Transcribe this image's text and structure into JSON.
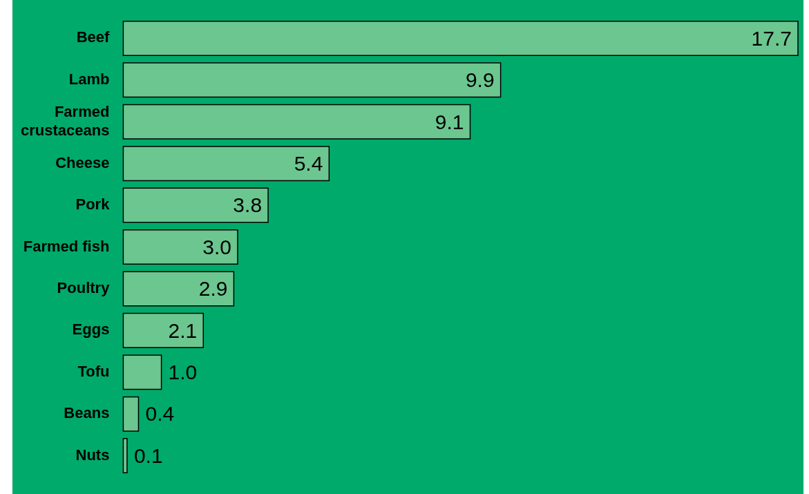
{
  "chart_data": {
    "type": "bar",
    "orientation": "horizontal",
    "categories": [
      "Beef",
      "Lamb",
      "Farmed crustaceans",
      "Cheese",
      "Pork",
      "Farmed fish",
      "Poultry",
      "Eggs",
      "Tofu",
      "Beans",
      "Nuts"
    ],
    "values": [
      17.7,
      9.9,
      9.1,
      5.4,
      3.8,
      3.0,
      2.9,
      2.1,
      1.0,
      0.4,
      0.1
    ],
    "value_labels": [
      "17.7",
      "9.9",
      "9.1",
      "5.4",
      "3.8",
      "3.0",
      "2.9",
      "2.1",
      "1.0",
      "0.4",
      "0.1"
    ],
    "color": "#6cc68f",
    "tick_labels": "y",
    "grid": false,
    "legend": false
  }
}
